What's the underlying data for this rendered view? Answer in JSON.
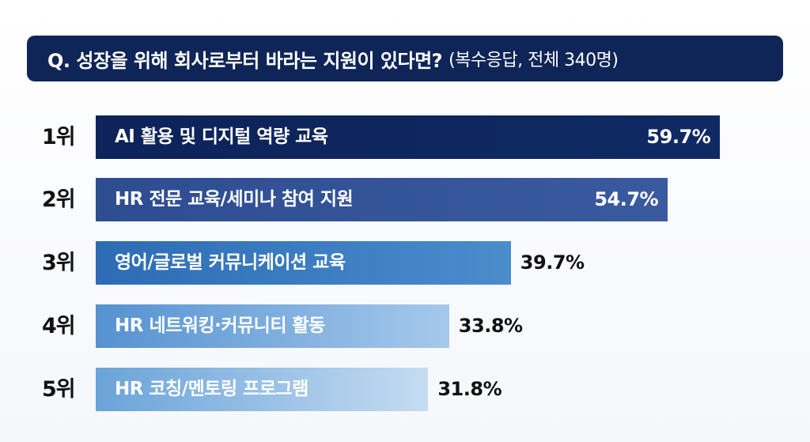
{
  "header": {
    "question": "Q. 성장을 위해 회사로부터 바라는 지원이 있다면?",
    "note": "(복수응답, 전체 340명)"
  },
  "colors": {
    "title_bg": "#0f2557",
    "bar_gradients": [
      [
        "#0d2359",
        "#0f2a63"
      ],
      [
        "#2e4d91",
        "#3a5aa0"
      ],
      [
        "#2d6cb5",
        "#4a8ccc"
      ],
      [
        "#5592d0",
        "#a6c9ec"
      ],
      [
        "#6aa3d8",
        "#c5dcf2"
      ]
    ]
  },
  "chart_data": {
    "type": "bar",
    "orientation": "horizontal",
    "xlim": [
      0,
      64.3
    ],
    "ranks": [
      "1위",
      "2위",
      "3위",
      "4위",
      "5위"
    ],
    "categories": [
      "AI 활용 및 디지털 역량 교육",
      "HR 전문 교육/세미나 참여 지원",
      "영어/글로벌 커뮤니케이션 교육",
      "HR 네트워킹·커뮤니티 활동",
      "HR 코칭/멘토링 프로그램"
    ],
    "values": [
      59.7,
      54.7,
      39.7,
      33.8,
      31.8
    ],
    "value_labels": [
      "59.7%",
      "54.7%",
      "39.7%",
      "33.8%",
      "31.8%"
    ],
    "value_label_position": [
      "inside",
      "inside",
      "outside",
      "outside",
      "outside"
    ]
  }
}
